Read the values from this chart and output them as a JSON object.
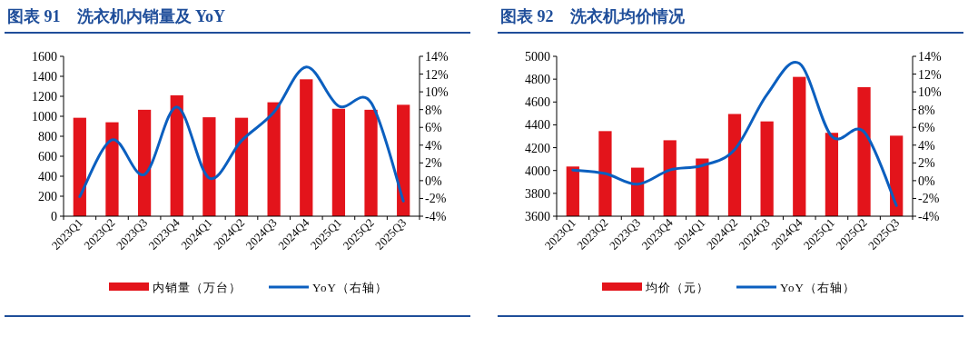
{
  "chart_data": [
    {
      "type": "bar",
      "title": "图表 91　洗衣机内销量及 YoY",
      "categories": [
        "2023Q1",
        "2023Q2",
        "2023Q3",
        "2023Q4",
        "2024Q1",
        "2024Q2",
        "2024Q3",
        "2024Q4",
        "2025Q1",
        "2025Q2",
        "2025Q3"
      ],
      "series": [
        {
          "name": "内销量（万台）",
          "color": "#e3141b",
          "values": [
            985,
            940,
            1065,
            1210,
            990,
            985,
            1140,
            1370,
            1075,
            1065,
            1115
          ]
        },
        {
          "name": "YoY（右轴）",
          "type": "line",
          "axis": "y2",
          "color": "#0b5fbf",
          "values": [
            -1.8,
            4.6,
            0.7,
            8.3,
            0.3,
            4.5,
            7.7,
            12.8,
            8.4,
            8.8,
            -2.3
          ]
        }
      ],
      "ylim": [
        0,
        1600
      ],
      "yticks": [
        0,
        200,
        400,
        600,
        800,
        1000,
        1200,
        1400,
        1600
      ],
      "y2lim": [
        -4,
        14
      ],
      "y2ticks": [
        {
          "value": -4,
          "label": "-4%"
        },
        {
          "value": -2,
          "label": "-2%"
        },
        {
          "value": 0,
          "label": "0%"
        },
        {
          "value": 2,
          "label": "2%"
        },
        {
          "value": 4,
          "label": "4%"
        },
        {
          "value": 6,
          "label": "6%"
        },
        {
          "value": 8,
          "label": "8%"
        },
        {
          "value": 10,
          "label": "10%"
        },
        {
          "value": 12,
          "label": "12%"
        },
        {
          "value": 14,
          "label": "14%"
        }
      ],
      "legend": "bottom"
    },
    {
      "type": "bar",
      "title": "图表 92　洗衣机均价情况",
      "categories": [
        "2023Q1",
        "2023Q2",
        "2023Q3",
        "2023Q4",
        "2024Q1",
        "2024Q2",
        "2024Q3",
        "2024Q4",
        "2025Q1",
        "2025Q2",
        "2025Q3"
      ],
      "series": [
        {
          "name": "均价（元）",
          "color": "#e3141b",
          "values": [
            4035,
            4345,
            4025,
            4265,
            4105,
            4495,
            4430,
            4820,
            4330,
            4730,
            4305
          ]
        },
        {
          "name": "YoY（右轴）",
          "type": "line",
          "axis": "y2",
          "color": "#0b5fbf",
          "values": [
            1.2,
            0.8,
            -0.4,
            1.2,
            1.7,
            3.5,
            9.7,
            13.2,
            5.0,
            5.5,
            -2.8
          ]
        }
      ],
      "ylim": [
        3600,
        5000
      ],
      "yticks": [
        3600,
        3800,
        4000,
        4200,
        4400,
        4600,
        4800,
        5000
      ],
      "y2lim": [
        -4,
        14
      ],
      "y2ticks": [
        {
          "value": -4,
          "label": "-4%"
        },
        {
          "value": -2,
          "label": "-2%"
        },
        {
          "value": 0,
          "label": "0%"
        },
        {
          "value": 2,
          "label": "2%"
        },
        {
          "value": 4,
          "label": "4%"
        },
        {
          "value": 6,
          "label": "6%"
        },
        {
          "value": 8,
          "label": "8%"
        },
        {
          "value": 10,
          "label": "10%"
        },
        {
          "value": 12,
          "label": "12%"
        },
        {
          "value": 14,
          "label": "14%"
        }
      ],
      "legend": "bottom"
    }
  ]
}
